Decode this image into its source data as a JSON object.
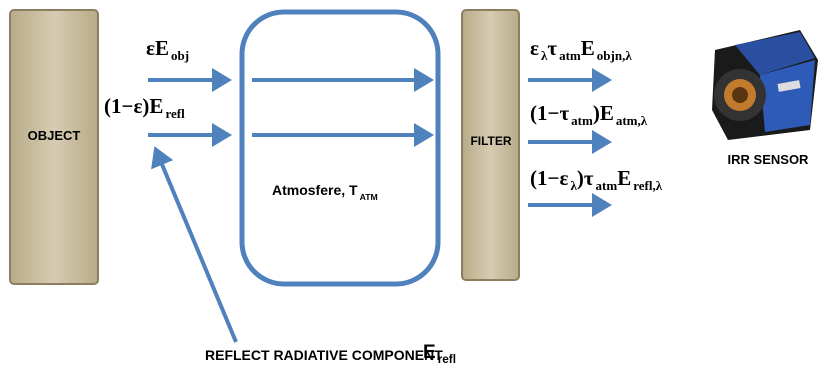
{
  "object": "OBJECT",
  "filter": "FILTER",
  "sensor": "IRR SENSOR",
  "atmosphere": [
    [
      "Atmosfere, T",
      "ATM"
    ]
  ],
  "reflect": {
    "text": "REFLECT RADIATIVE COMPONENT",
    "symbol": [
      [
        "E",
        "refl"
      ]
    ]
  },
  "inputs": [
    [
      [
        "εE",
        "obj"
      ]
    ],
    [
      [
        "(1−ε)E",
        "refl"
      ]
    ]
  ],
  "outputs": [
    [
      [
        "ε",
        "λ"
      ],
      [
        "τ",
        "atm"
      ],
      [
        "E",
        "objn,λ"
      ]
    ],
    [
      [
        "(1−τ",
        "atm"
      ],
      [
        ")E",
        "atm,λ"
      ]
    ],
    [
      [
        "(1−ε",
        "λ"
      ],
      [
        ")τ",
        "atm"
      ],
      [
        "E",
        "refl,λ"
      ]
    ]
  ]
}
